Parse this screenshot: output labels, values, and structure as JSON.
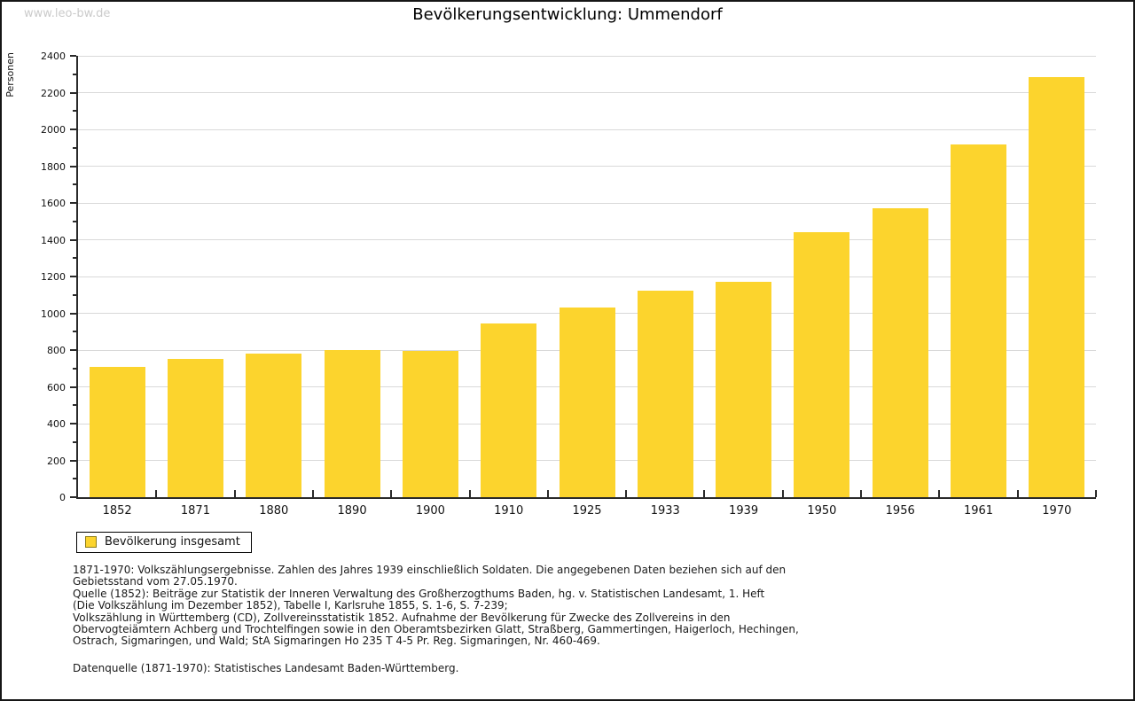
{
  "page": {
    "watermark": "www.leo-bw.de",
    "title": "Bevölkerungsentwicklung: Ummendorf"
  },
  "chart_data": {
    "type": "bar",
    "title": "Bevölkerungsentwicklung: Ummendorf",
    "ylabel": "Personen",
    "xlabel": "",
    "categories": [
      "1852",
      "1871",
      "1880",
      "1890",
      "1900",
      "1910",
      "1925",
      "1933",
      "1939",
      "1950",
      "1956",
      "1961",
      "1970"
    ],
    "series": [
      {
        "name": "Bevölkerung insgesamt",
        "color": "#FCD42D",
        "values": [
          710,
          750,
          780,
          800,
          795,
          945,
          1030,
          1125,
          1170,
          1440,
          1570,
          1920,
          2285
        ]
      }
    ],
    "ylim": [
      0,
      2400
    ],
    "ytick_major": 200,
    "ytick_minor": 100,
    "grid": "horizontal",
    "grid_color": "#d9d9d9",
    "axis_color": "#2a2a2a",
    "legend_position": "below-left"
  },
  "legend": {
    "label": "Bevölkerung insgesamt",
    "swatch_color": "#FCD42D",
    "swatch_border": "#8d7c17"
  },
  "footnotes": {
    "para1_lines": [
      "1871-1970: Volkszählungsergebnisse. Zahlen des Jahres 1939 einschließlich Soldaten. Die angegebenen Daten beziehen sich auf den",
      "Gebietsstand vom 27.05.1970.",
      "Quelle (1852): Beiträge zur Statistik der Inneren Verwaltung des Großherzogthums Baden, hg. v. Statistischen Landesamt, 1. Heft",
      "(Die Volkszählung im Dezember 1852), Tabelle I, Karlsruhe 1855, S. 1-6, S. 7-239;",
      "Volkszählung in Württemberg (CD), Zollvereinsstatistik 1852. Aufnahme der Bevölkerung für Zwecke des Zollvereins in den",
      "Obervogteiämtern Achberg und Trochtelfingen sowie in den Oberamtsbezirken Glatt, Straßberg, Gammertingen, Haigerloch, Hechingen,",
      "Ostrach, Sigmaringen, und Wald; StA Sigmaringen Ho 235 T 4-5 Pr. Reg. Sigmaringen, Nr. 460-469."
    ],
    "para2": "Datenquelle (1871-1970): Statistisches Landesamt Baden-Württemberg."
  }
}
